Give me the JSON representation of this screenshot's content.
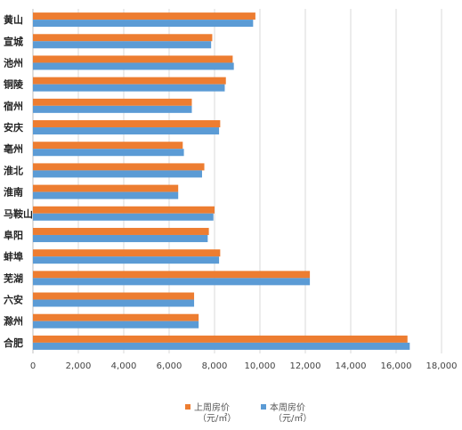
{
  "chart_data": {
    "type": "bar",
    "orientation": "horizontal",
    "categories": [
      "黄山",
      "宣城",
      "池州",
      "铜陵",
      "宿州",
      "安庆",
      "亳州",
      "淮北",
      "淮南",
      "马鞍山",
      "阜阳",
      "蚌埠",
      "芜湖",
      "六安",
      "滁州",
      "合肥"
    ],
    "series": [
      {
        "name": "上周房价",
        "unit": "（元/㎡）",
        "color": "#ED7D31",
        "values": [
          9800,
          7900,
          8800,
          8500,
          7000,
          8250,
          6600,
          7550,
          6400,
          8000,
          7750,
          8250,
          12200,
          7100,
          7300,
          16500
        ]
      },
      {
        "name": "本周房价",
        "unit": "（元/㎡）",
        "color": "#5B9BD5",
        "values": [
          9700,
          7850,
          8850,
          8450,
          7000,
          8200,
          6650,
          7450,
          6400,
          7950,
          7700,
          8200,
          12200,
          7100,
          7300,
          16600
        ]
      }
    ],
    "xlim": [
      0,
      18000
    ],
    "ticks": [
      0,
      2000,
      4000,
      6000,
      8000,
      10000,
      12000,
      14000,
      16000,
      18000
    ],
    "tick_labels": [
      "0",
      "2,000",
      "4,000",
      "6,000",
      "8,000",
      "10,000",
      "12,000",
      "14,000",
      "16,000",
      "18,000"
    ],
    "grid": "vertical",
    "legend_position": "bottom"
  }
}
